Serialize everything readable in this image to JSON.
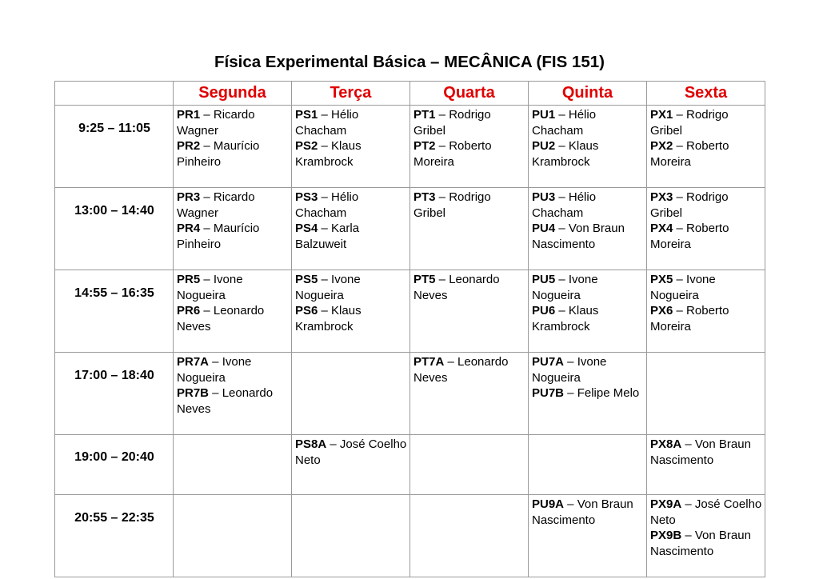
{
  "title": "Física Experimental Básica – MECÂNICA (FIS 151)",
  "days": [
    "Segunda",
    "Terça",
    "Quarta",
    "Quinta",
    "Sexta"
  ],
  "header_color": "#e00000",
  "rows": [
    {
      "time": "9:25 – 11:05",
      "cells": [
        [
          {
            "code": "PR1",
            "name": "Ricardo Wagner"
          },
          {
            "code": "PR2",
            "name": "Maurício Pinheiro"
          }
        ],
        [
          {
            "code": "PS1",
            "name": "Hélio Chacham"
          },
          {
            "code": "PS2",
            "name": "Klaus Krambrock"
          }
        ],
        [
          {
            "code": "PT1",
            "name": "Rodrigo Gribel"
          },
          {
            "code": "PT2",
            "name": "Roberto Moreira"
          }
        ],
        [
          {
            "code": "PU1",
            "name": "Hélio Chacham"
          },
          {
            "code": "PU2",
            "name": "Klaus Krambrock"
          }
        ],
        [
          {
            "code": "PX1",
            "name": "Rodrigo Gribel"
          },
          {
            "code": "PX2",
            "name": "Roberto Moreira"
          }
        ]
      ]
    },
    {
      "time": "13:00 – 14:40",
      "cells": [
        [
          {
            "code": "PR3",
            "name": "Ricardo Wagner"
          },
          {
            "code": "PR4",
            "name": "Maurício Pinheiro"
          }
        ],
        [
          {
            "code": "PS3",
            "name": "Hélio Chacham"
          },
          {
            "code": "PS4",
            "name": "Karla Balzuweit"
          }
        ],
        [
          {
            "code": "PT3",
            "name": "Rodrigo Gribel"
          }
        ],
        [
          {
            "code": "PU3",
            "name": "Hélio Chacham"
          },
          {
            "code": "PU4",
            "name": "Von Braun Nascimento"
          }
        ],
        [
          {
            "code": "PX3",
            "name": "Rodrigo Gribel"
          },
          {
            "code": "PX4",
            "name": "Roberto Moreira"
          }
        ]
      ]
    },
    {
      "time": "14:55 – 16:35",
      "cells": [
        [
          {
            "code": "PR5",
            "name": "Ivone Nogueira"
          },
          {
            "code": "PR6",
            "name": "Leonardo Neves"
          }
        ],
        [
          {
            "code": "PS5",
            "name": "Ivone Nogueira"
          },
          {
            "code": "PS6",
            "name": "Klaus Krambrock"
          }
        ],
        [
          {
            "code": "PT5",
            "name": "Leonardo Neves"
          }
        ],
        [
          {
            "code": "PU5",
            "name": "Ivone Nogueira"
          },
          {
            "code": "PU6",
            "name": "Klaus Krambrock"
          }
        ],
        [
          {
            "code": "PX5",
            "name": "Ivone Nogueira"
          },
          {
            "code": "PX6",
            "name": "Roberto Moreira"
          }
        ]
      ]
    },
    {
      "time": "17:00 – 18:40",
      "cells": [
        [
          {
            "code": "PR7A",
            "name": "Ivone Nogueira"
          },
          {
            "code": "PR7B",
            "name": "Leonardo Neves"
          }
        ],
        [],
        [
          {
            "code": "PT7A",
            "name": "Leonardo Neves"
          }
        ],
        [
          {
            "code": "PU7A",
            "name": "Ivone Nogueira"
          },
          {
            "code": "PU7B",
            "name": "Felipe Melo"
          }
        ],
        []
      ]
    },
    {
      "time": "19:00 – 20:40",
      "cells": [
        [],
        [
          {
            "code": "PS8A",
            "name": "José Coelho Neto"
          }
        ],
        [],
        [],
        [
          {
            "code": "PX8A",
            "name": "Von Braun Nascimento"
          }
        ]
      ]
    },
    {
      "time": "20:55 – 22:35",
      "cells": [
        [],
        [],
        [],
        [
          {
            "code": "PU9A",
            "name": "Von Braun Nascimento"
          }
        ],
        [
          {
            "code": "PX9A",
            "name": "José Coelho Neto"
          },
          {
            "code": "PX9B",
            "name": "Von Braun Nascimento"
          }
        ]
      ]
    }
  ]
}
